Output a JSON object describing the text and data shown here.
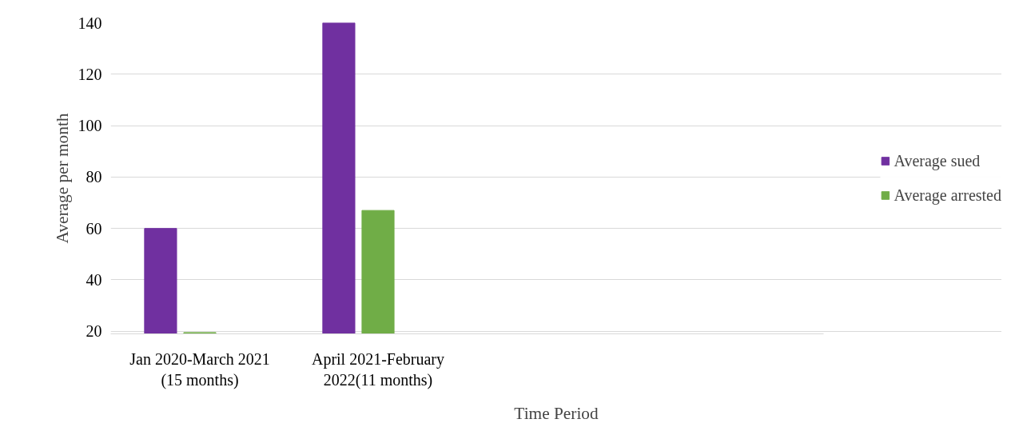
{
  "chart_data": {
    "type": "bar",
    "xlabel": "Time Period",
    "ylabel": "Average per month",
    "categories": [
      "Jan 2020-March 2021 (15 months)",
      "April 2021-February 2022(11 months)",
      null,
      null
    ],
    "series": [
      {
        "name": "Average sued",
        "color": "#7030a0",
        "values": [
          60,
          140,
          null,
          null
        ]
      },
      {
        "name": "Average arrested",
        "color": "#70ad47",
        "values": [
          19.5,
          67,
          null,
          null
        ]
      }
    ],
    "ylim": [
      19,
      140
    ],
    "yticks": [
      20,
      40,
      60,
      80,
      100,
      120,
      140
    ],
    "grid": "y",
    "legend": "right"
  }
}
